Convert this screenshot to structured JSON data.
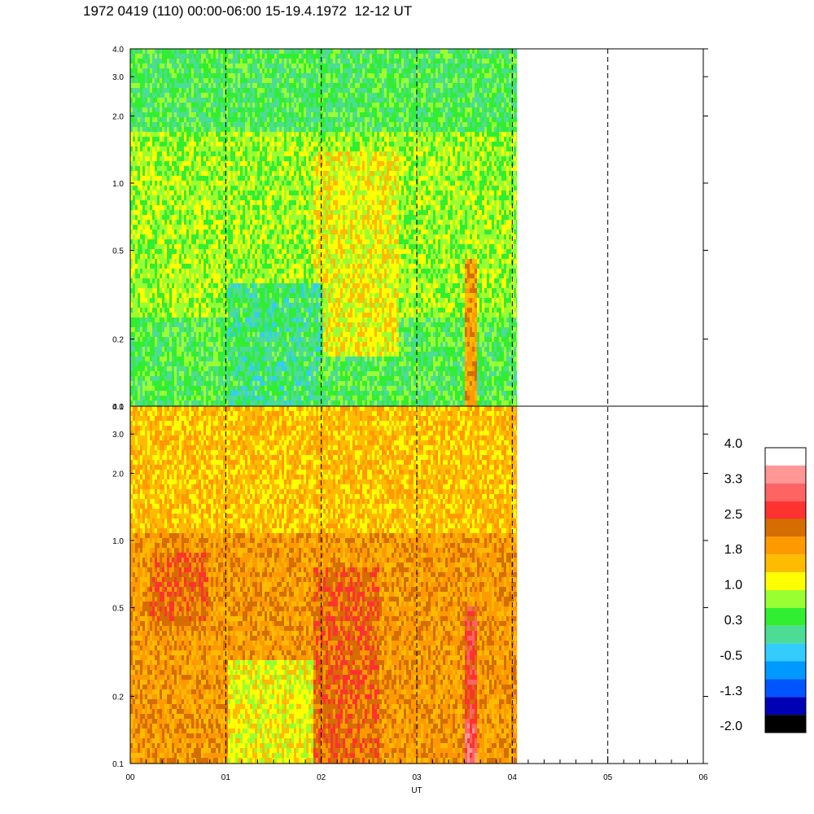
{
  "title": "1972 0419 (110) 00:00-06:00 15-19.4.1972  12-12 UT",
  "chart_data": {
    "type": "heatmap",
    "xlabel": "UT",
    "x_ticks": [
      "00",
      "01",
      "02",
      "03",
      "04",
      "05",
      "06"
    ],
    "xlim": [
      0,
      6
    ],
    "data_end_hour": 4.05,
    "dashed_vlines_hours": [
      1,
      2,
      3,
      4,
      5
    ],
    "y_scale": "log",
    "ylim": [
      0.1,
      4.0
    ],
    "y_ticks": [
      "0.1",
      "0.2",
      "0.5",
      "1.0",
      "2.0",
      "3.0",
      "4.0"
    ],
    "colorbar": {
      "labels": [
        "4.0",
        "3.3",
        "2.5",
        "1.8",
        "1.0",
        "0.3",
        "-0.5",
        "-1.3",
        "-2.0"
      ],
      "colors": [
        "#ffffff",
        "#ff9797",
        "#ff6464",
        "#ff3232",
        "#d56d00",
        "#ff9900",
        "#ffbb00",
        "#ffff00",
        "#99ff32",
        "#32ee32",
        "#4cdc96",
        "#32ccff",
        "#0099ff",
        "#0055ff",
        "#0000b4",
        "#000000"
      ]
    },
    "panels": [
      {
        "name": "upper",
        "dominant_values": "0.3 to 1.0 (green / yellow-green), with -0.5 (cyan) near top and 1.0-1.8 (yellow) around 02-03 UT, 2.5 near 03:30 UT low frequencies"
      },
      {
        "name": "lower",
        "dominant_values": "1.8 to 2.5 (orange), 1.0 (yellow) around 01-02 UT, 3.3 (red/pink) near 03:30 UT low frequencies"
      }
    ]
  }
}
